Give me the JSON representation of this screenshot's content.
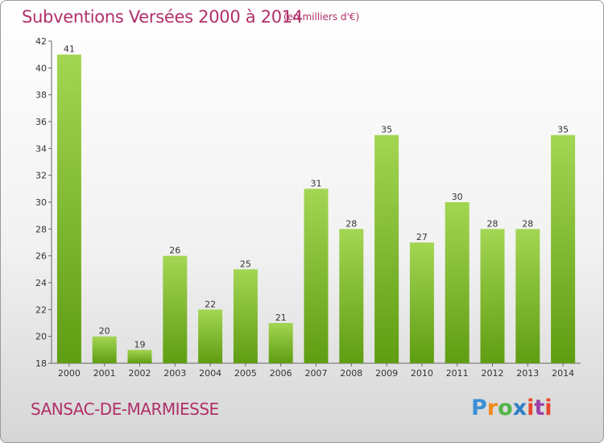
{
  "header": {
    "title": "Subventions Versées 2000 à 2014",
    "subtitle": "(en milliers d'€)"
  },
  "footer": {
    "commune": "SANSAC-DE-MARMIESSE",
    "logo_text": "Proxiti"
  },
  "colors": {
    "title": "#b0306a",
    "bar_top": "#a3d653",
    "bar_bottom": "#5f9d12",
    "logo_p": "#3b8fd6",
    "logo_r": "#f08a1c",
    "logo_o": "#52b447",
    "logo_x": "#2e7fc6",
    "logo_i": "#e8462c",
    "logo_t": "#9c3fa8"
  },
  "chart_data": {
    "type": "bar",
    "categories": [
      "2000",
      "2001",
      "2002",
      "2003",
      "2004",
      "2005",
      "2006",
      "2007",
      "2008",
      "2009",
      "2010",
      "2011",
      "2012",
      "2013",
      "2014"
    ],
    "values": [
      41,
      20,
      19,
      26,
      22,
      25,
      21,
      31,
      28,
      35,
      27,
      30,
      28,
      28,
      35
    ],
    "title": "Subventions Versées 2000 à 2014",
    "xlabel": "",
    "ylabel": "",
    "ylim": [
      18,
      42
    ],
    "yticks": [
      18,
      20,
      22,
      24,
      26,
      28,
      30,
      32,
      34,
      36,
      38,
      40,
      42
    ],
    "grid": false,
    "data_labels": true
  }
}
